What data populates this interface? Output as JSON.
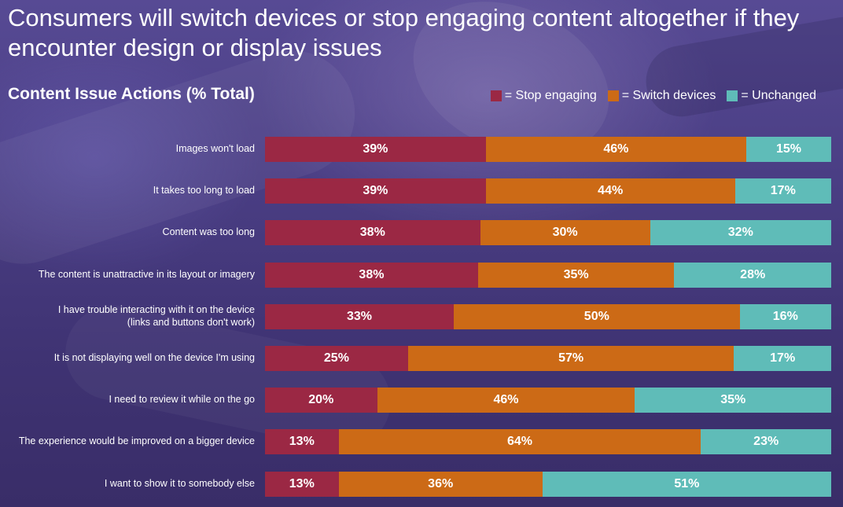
{
  "chart_data": {
    "type": "bar",
    "orientation": "horizontal",
    "stacked": true,
    "title": "Consumers will switch devices or stop engaging content altogether if they encounter design or display issues",
    "subtitle": "Content Issue Actions (% Total)",
    "legend_position": "top-right",
    "categories": [
      "Images won't load",
      "It takes too long to load",
      "Content was too long",
      "The content is unattractive in its layout or imagery",
      "I have trouble interacting with it on the device\n(links and buttons don't work)",
      "It is not displaying well on the device I'm using",
      "I need to review it while on the go",
      "The experience would be improved on a bigger device",
      "I want to show it to somebody else"
    ],
    "series": [
      {
        "name": "Stop engaging",
        "legend_label": "= Stop engaging",
        "color": "#9b2844",
        "values": [
          39,
          39,
          38,
          38,
          33,
          25,
          20,
          13,
          13
        ],
        "labels": [
          "39%",
          "39%",
          "38%",
          "38%",
          "33%",
          "25%",
          "20%",
          "13%",
          "13%"
        ]
      },
      {
        "name": "Switch devices",
        "legend_label": "= Switch devices",
        "color": "#cc6a16",
        "values": [
          46,
          44,
          30,
          35,
          50,
          57,
          46,
          64,
          36
        ],
        "labels": [
          "46%",
          "44%",
          "30%",
          "35%",
          "50%",
          "57%",
          "46%",
          "64%",
          "36%"
        ]
      },
      {
        "name": "Unchanged",
        "legend_label": "= Unchanged",
        "color": "#5fbcb8",
        "values": [
          15,
          17,
          32,
          28,
          16,
          17,
          35,
          23,
          51
        ],
        "labels": [
          "15%",
          "17%",
          "32%",
          "28%",
          "16%",
          "17%",
          "35%",
          "23%",
          "51%"
        ]
      }
    ],
    "xlim": [
      0,
      100
    ],
    "grid": false
  }
}
